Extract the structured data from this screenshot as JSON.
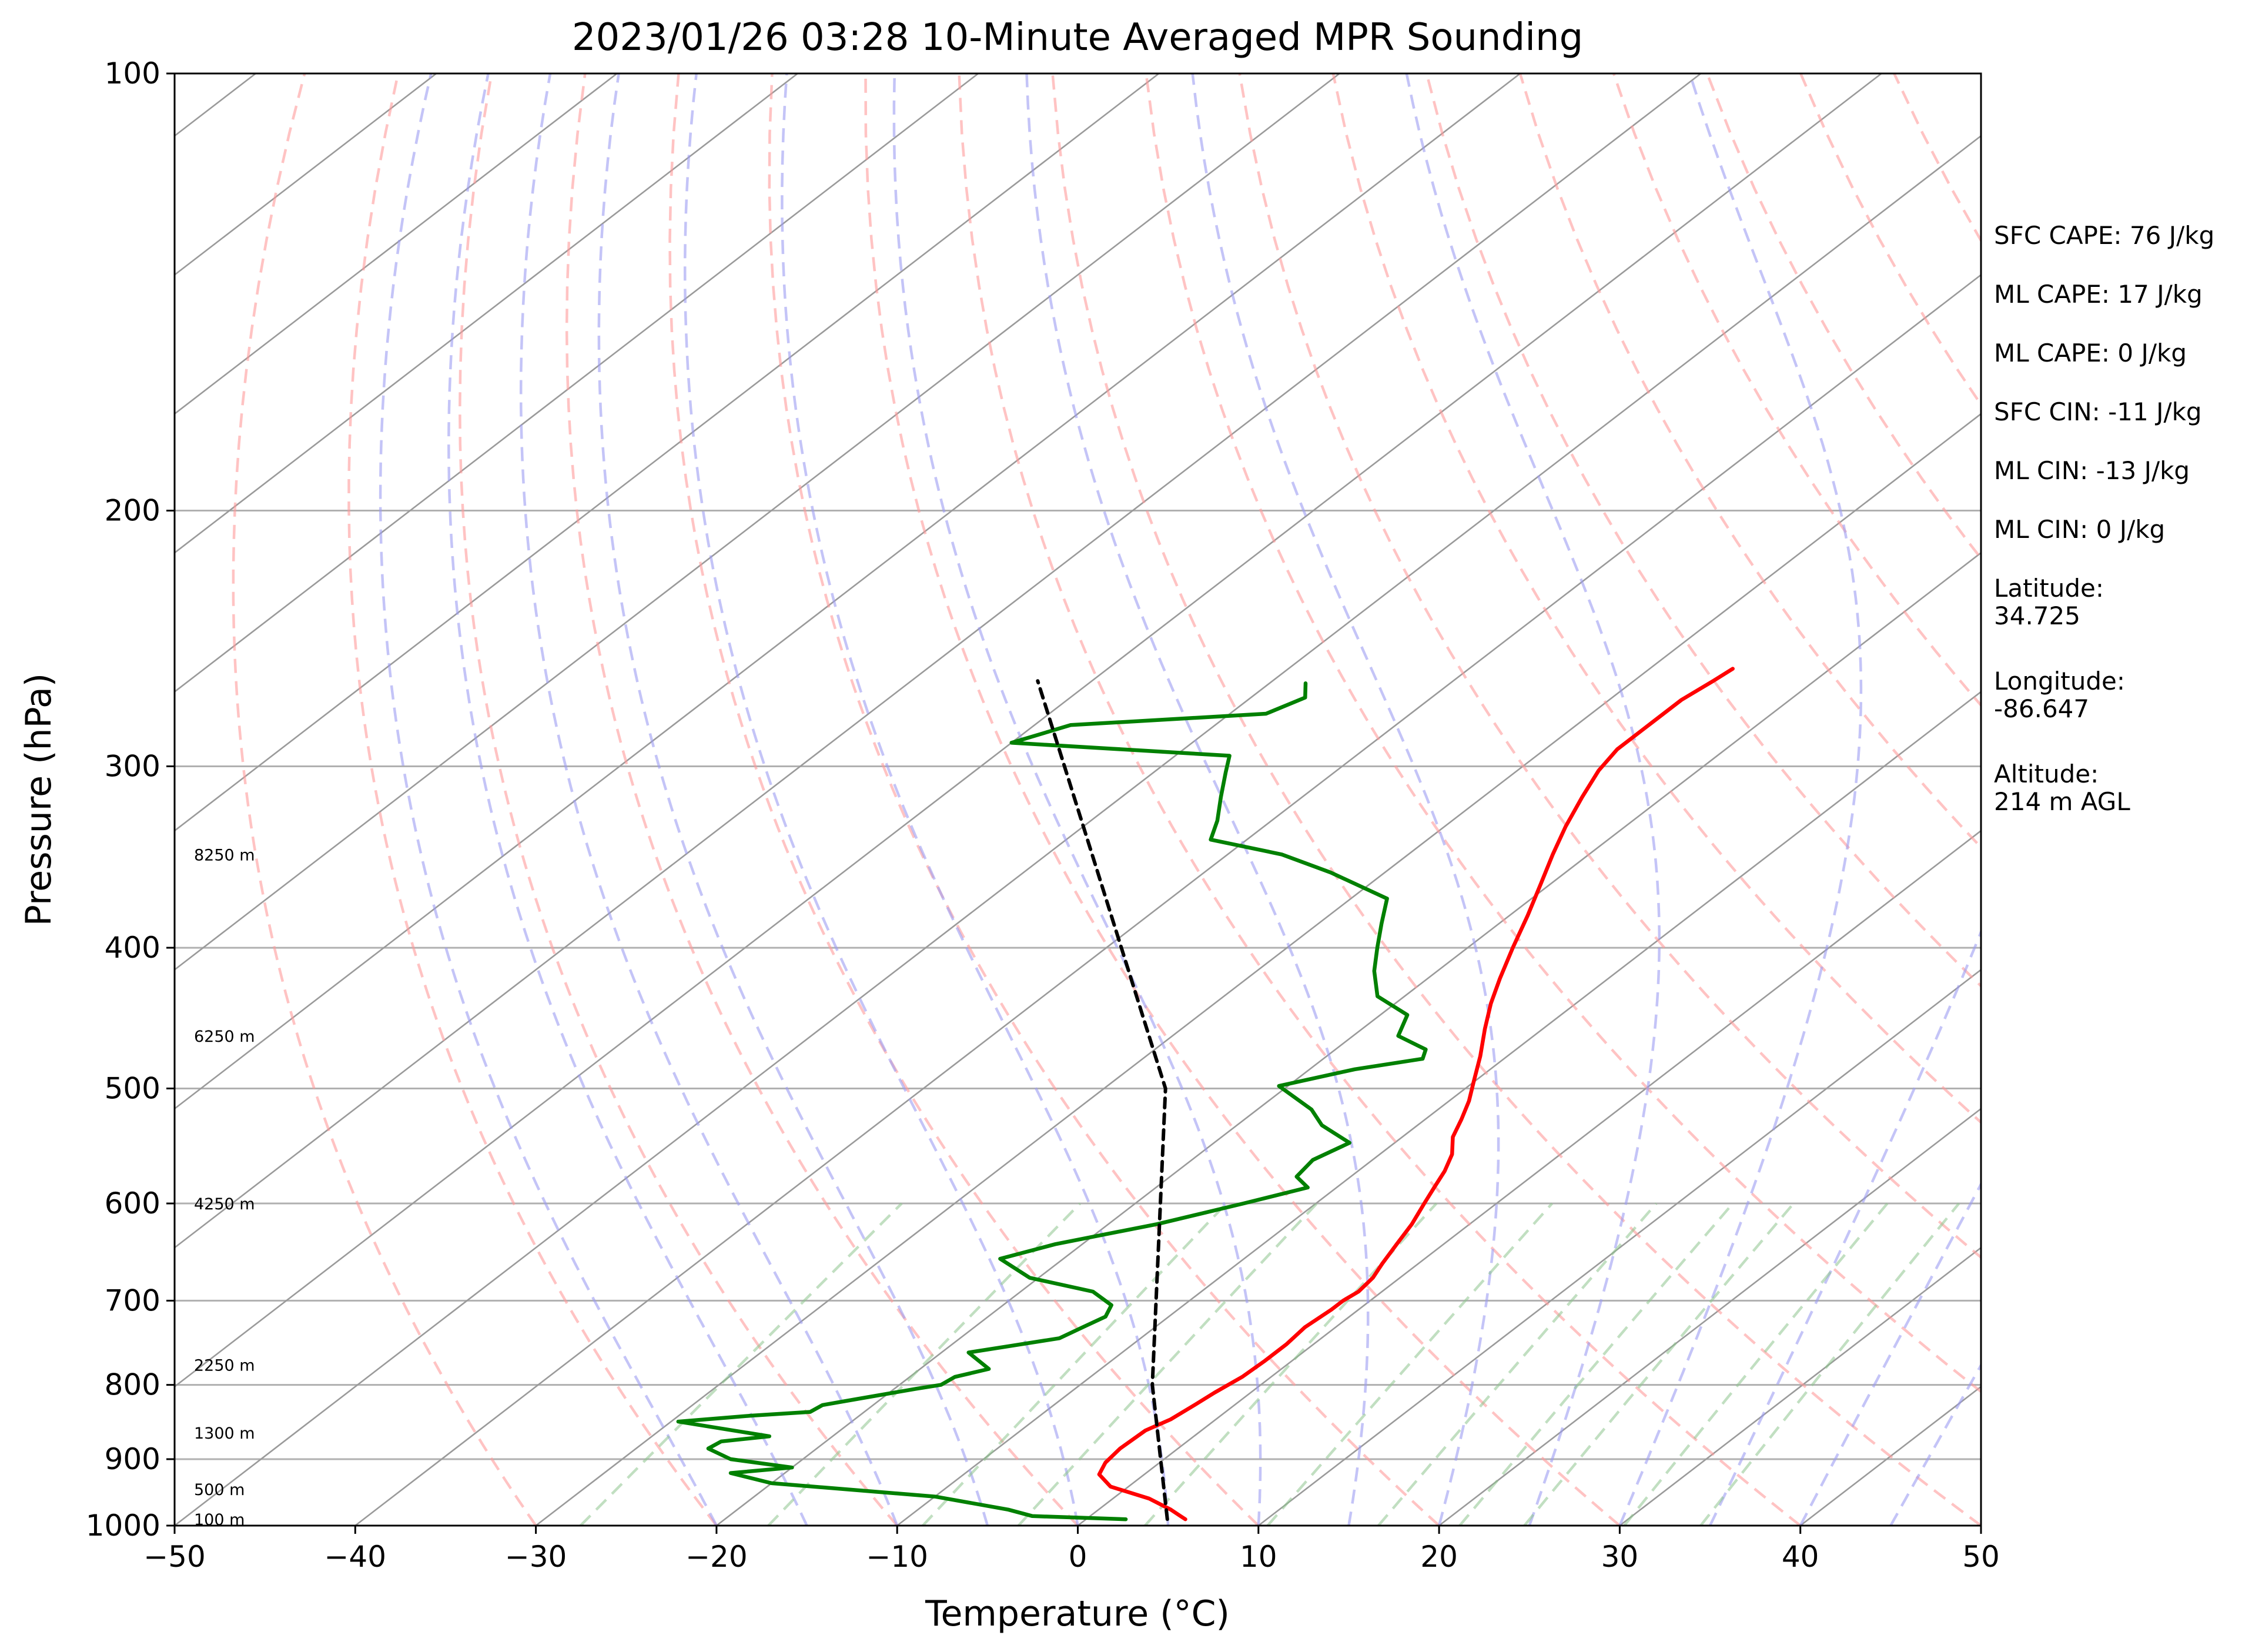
{
  "chart_data": {
    "type": "line",
    "title": "2023/01/26 03:28 10-Minute Averaged MPR Sounding",
    "xlabel": "Temperature (°C)",
    "ylabel": "Pressure (hPa)",
    "xlim": [
      -50,
      50
    ],
    "ylim": [
      1000,
      100
    ],
    "y_scale": "log",
    "grid": true,
    "x_ticks": [
      "−50",
      "−40",
      "−30",
      "−20",
      "−10",
      "0",
      "10",
      "20",
      "30",
      "40",
      "50"
    ],
    "y_ticks": [
      "100",
      "200",
      "300",
      "400",
      "500",
      "600",
      "700",
      "800",
      "900",
      "1000"
    ],
    "height_labels": [
      {
        "label": "100 m",
        "p": 990
      },
      {
        "label": "500 m",
        "p": 944
      },
      {
        "label": "1300 m",
        "p": 863
      },
      {
        "label": "2250 m",
        "p": 775
      },
      {
        "label": "4250 m",
        "p": 600
      },
      {
        "label": "6250 m",
        "p": 460
      },
      {
        "label": "8250 m",
        "p": 345
      }
    ],
    "annotations": [
      [
        "SFC CAPE: 76 J/kg"
      ],
      [
        "ML CAPE: 17 J/kg"
      ],
      [
        "ML CAPE: 0 J/kg"
      ],
      [
        "SFC CIN: -11 J/kg"
      ],
      [
        "ML CIN: -13 J/kg"
      ],
      [
        "ML CIN: 0 J/kg"
      ],
      [
        "Latitude:",
        "34.725"
      ],
      [
        "Longitude:",
        "-86.647"
      ],
      [
        "Altitude:",
        "214 m AGL"
      ]
    ],
    "series": [
      {
        "role": "temperature",
        "color": "#ff0000",
        "points": [
          [
            5.5,
            990
          ],
          [
            5,
            985
          ],
          [
            4,
            975
          ],
          [
            2,
            958
          ],
          [
            -1,
            940
          ],
          [
            -2.5,
            922
          ],
          [
            -3,
            905
          ],
          [
            -3.2,
            885
          ],
          [
            -3.1,
            860
          ],
          [
            -2.5,
            845
          ],
          [
            -2.2,
            825
          ],
          [
            -2,
            810
          ],
          [
            -1.6,
            790
          ],
          [
            -1.5,
            770
          ],
          [
            -1.5,
            750
          ],
          [
            -1.7,
            730
          ],
          [
            -1.5,
            710
          ],
          [
            -1.5,
            700
          ],
          [
            -1.3,
            690
          ],
          [
            -1.5,
            675
          ],
          [
            -2,
            660
          ],
          [
            -2.6,
            640
          ],
          [
            -3.2,
            620
          ],
          [
            -4,
            600
          ],
          [
            -4.6,
            585
          ],
          [
            -5.2,
            570
          ],
          [
            -6,
            555
          ],
          [
            -7.2,
            540
          ],
          [
            -8,
            525
          ],
          [
            -8.9,
            510
          ],
          [
            -10,
            495
          ],
          [
            -11.5,
            475
          ],
          [
            -13.2,
            455
          ],
          [
            -14.7,
            437
          ],
          [
            -16,
            420
          ],
          [
            -17.5,
            400
          ],
          [
            -19,
            380
          ],
          [
            -20.5,
            362
          ],
          [
            -22,
            345
          ],
          [
            -23.3,
            330
          ],
          [
            -24.5,
            315
          ],
          [
            -25.5,
            302
          ],
          [
            -26,
            292
          ],
          [
            -26,
            280
          ],
          [
            -26,
            270
          ],
          [
            -25.6,
            262
          ],
          [
            -25.4,
            257
          ]
        ]
      },
      {
        "role": "dewpoint",
        "color": "#008000",
        "points": [
          [
            2.2,
            990
          ],
          [
            -3.2,
            985
          ],
          [
            -5,
            975
          ],
          [
            -10,
            955
          ],
          [
            -20,
            935
          ],
          [
            -23,
            920
          ],
          [
            -20,
            912
          ],
          [
            -24,
            900
          ],
          [
            -26,
            885
          ],
          [
            -25.8,
            875
          ],
          [
            -23.5,
            868
          ],
          [
            -29.6,
            848
          ],
          [
            -26,
            840
          ],
          [
            -23,
            835
          ],
          [
            -22.8,
            826
          ],
          [
            -21.3,
            818
          ],
          [
            -18.8,
            805
          ],
          [
            -17.7,
            800
          ],
          [
            -17.5,
            790
          ],
          [
            -16.2,
            780
          ],
          [
            -18.5,
            760
          ],
          [
            -14.5,
            743
          ],
          [
            -14,
            730
          ],
          [
            -13.5,
            718
          ],
          [
            -14,
            705
          ],
          [
            -16,
            690
          ],
          [
            -20.5,
            675
          ],
          [
            -23.5,
            655
          ],
          [
            -21.5,
            640
          ],
          [
            -17.3,
            620
          ],
          [
            -14,
            600
          ],
          [
            -11.6,
            585
          ],
          [
            -13,
            575
          ],
          [
            -13.3,
            560
          ],
          [
            -12.5,
            545
          ],
          [
            -15.3,
            530
          ],
          [
            -17,
            517
          ],
          [
            -20.5,
            498
          ],
          [
            -17.5,
            485
          ],
          [
            -14.5,
            477
          ],
          [
            -15,
            470
          ],
          [
            -17.5,
            460
          ],
          [
            -18.5,
            445
          ],
          [
            -21.5,
            432
          ],
          [
            -23.5,
            415
          ],
          [
            -25,
            400
          ],
          [
            -26.5,
            385
          ],
          [
            -28,
            370
          ],
          [
            -33,
            355
          ],
          [
            -37,
            345
          ],
          [
            -42,
            337
          ],
          [
            -43,
            327
          ],
          [
            -44.5,
            315
          ],
          [
            -46,
            303
          ],
          [
            -47,
            295
          ],
          [
            -60,
            289
          ],
          [
            -58,
            281
          ],
          [
            -48,
            276
          ],
          [
            -47,
            269
          ],
          [
            -48,
            263
          ]
        ]
      },
      {
        "role": "parcel",
        "color": "#000000",
        "style": "dashed",
        "points": [
          [
            4.5,
            990
          ],
          [
            -6,
            800
          ],
          [
            -26.6,
            500
          ],
          [
            -63,
            262
          ]
        ]
      }
    ],
    "guide_colors": {
      "isotherm": "#9a9a9a",
      "dry_adiabat": "#ff9b9b",
      "moist_adiabat": "#9c9cf2",
      "mixing_ratio": "#8ec48e"
    }
  }
}
